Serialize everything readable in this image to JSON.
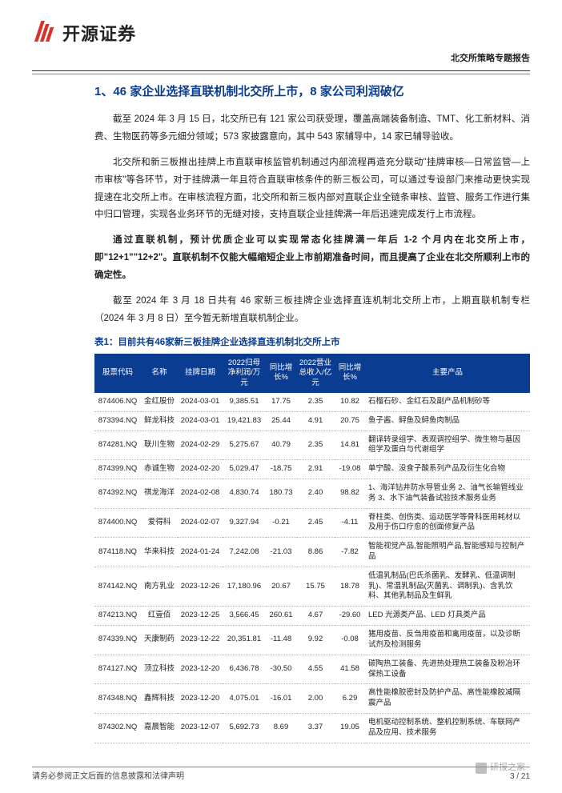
{
  "header": {
    "brand_name": "开源证券",
    "report_type": "北交所策略专题报告"
  },
  "section": {
    "title": "1、46 家企业选择直联机制北交所上市，8 家公司利润破亿"
  },
  "paragraphs": [
    "截至 2024 年 3 月 15 日，北交所已有 121 家公司获受理，覆盖高端装备制造、TMT、化工新材料、消费、生物医药等多元细分领域；573 家披露意向，其中 543 家辅导中，14 家已辅导验收。",
    "北交所和新三板推出挂牌上市直联审核监管机制通过内部流程再造充分联动\"挂牌审核—日常监管—上市审核\"等各环节，对于挂牌满一年且符合直联审核条件的新三板公司，可以通过专设部门来推动更快实现提速在北交所上市。在审核流程方面，北交所和新三板内部对直联企业全链条审核、监管、服务工作进行集中归口管理，实现各业务环节的无缝对接，支持直联企业挂牌满一年后迅速完成发行上市流程。",
    "通过直联机制，预计优质企业可以实现常态化挂牌满一年后 1-2 个月内在北交所上市，即\"12+1\"\"12+2\"。直联机制不仅能大幅缩短企业上市前期准备时间，而且提高了企业在北交所顺利上市的确定性。",
    "截至 2024 年 3 月 18 日共有 46 家新三板挂牌企业选择直连机制北交所上市，上期直联机制专栏（2024 年 3 月 8 日）至今暂无新增直联机制企业。"
  ],
  "paragraph_bold_index": 2,
  "table": {
    "title": "表1：目前共有46家新三板挂牌企业选择直连机制北交所上市",
    "columns": [
      "股票代码",
      "名称",
      "挂牌日期",
      "2022归母净利润/万元",
      "同比增长%",
      "2022营业总收入/亿元",
      "同比增长%",
      "主要产品"
    ],
    "header_bg": "#0a3d91",
    "header_color": "#ffffff",
    "rows": [
      [
        "874406.NQ",
        "金红股份",
        "2024-03-01",
        "9,385.51",
        "17.75",
        "2.35",
        "10.82",
        "石榴石砂、金红石及副产品机制砂等"
      ],
      [
        "873394.NQ",
        "鲜龙科技",
        "2024-03-01",
        "19,421.83",
        "25.44",
        "4.91",
        "20.75",
        "鱼子酱、鲟鱼及鲟鱼肉制品"
      ],
      [
        "874281.NQ",
        "联川生物",
        "2024-02-29",
        "5,275.67",
        "40.79",
        "2.35",
        "14.81",
        "翻译转录组学、表观调控组学、微生物与基因组学及蛋白与代谢组学"
      ],
      [
        "874399.NQ",
        "赤诚生物",
        "2024-02-20",
        "5,029.47",
        "-18.75",
        "2.91",
        "-19.08",
        "单宁酸、没食子酸系列产品及衍生化合物"
      ],
      [
        "874392.NQ",
        "祺龙海洋",
        "2024-02-08",
        "4,830.74",
        "180.73",
        "2.40",
        "98.82",
        "1、海洋钻井防水导管业务 2、油气长输管线业务 3、水下油气装备试验技术服务业务"
      ],
      [
        "874400.NQ",
        "爱得科",
        "2024-02-07",
        "9,327.94",
        "-0.21",
        "2.45",
        "-4.11",
        "脊柱类、创伤类、运动医学等骨科医用耗材以及用于伤口疗愈的创面修复产品"
      ],
      [
        "874118.NQ",
        "华来科技",
        "2024-01-24",
        "7,242.08",
        "-21.03",
        "8.86",
        "-7.82",
        "智能视觉产品,智能照明产品,智能感知与控制产品"
      ],
      [
        "874142.NQ",
        "南方乳业",
        "2023-12-26",
        "17,180.96",
        "20.67",
        "15.75",
        "18.78",
        "低温乳制品(巴氏杀菌乳、发酵乳、低温调制乳)、常温乳制品(灭菌乳、调制乳)、含乳饮料、其他乳制品及生鲜乳"
      ],
      [
        "874213.NQ",
        "红壹佰",
        "2023-12-25",
        "3,566.45",
        "260.61",
        "4.67",
        "-29.60",
        "LED 光源类产品、LED 灯具类产品"
      ],
      [
        "874339.NQ",
        "天康制药",
        "2023-12-22",
        "20,351.81",
        "-11.48",
        "9.92",
        "-0.08",
        "猪用疫苗、反刍用疫苗和禽用疫苗，以及诊断试剂及检测服务"
      ],
      [
        "874127.NQ",
        "顶立科技",
        "2023-12-20",
        "6,436.78",
        "-30.50",
        "4.55",
        "41.58",
        "碳陶热工装备、先进热处理热工装备及粉冶环保热工设备"
      ],
      [
        "874348.NQ",
        "鑫辉科技",
        "2023-12-20",
        "4,075.01",
        "-16.01",
        "2.00",
        "6.29",
        "高性能橡胶密封及防护产品、高性能橡胶减隔震产品"
      ],
      [
        "874302.NQ",
        "嘉晨智能",
        "2023-12-07",
        "5,692.73",
        "8.69",
        "3.37",
        "19.05",
        "电机驱动控制系统、整机控制系统、车联网产品及应用、技术服务"
      ]
    ]
  },
  "footer": {
    "disclaimer": "请务必参阅正文后面的信息披露和法律声明",
    "page": "3 / 21",
    "watermark": "研报之家"
  },
  "colors": {
    "brand_blue": "#0a3d91",
    "logo_red": "#d6332a",
    "text": "#222222",
    "rule": "#333333"
  }
}
